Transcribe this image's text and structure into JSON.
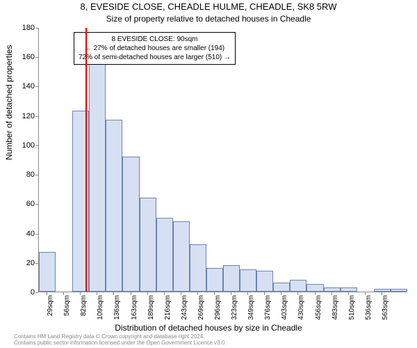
{
  "title_main": "8, EVESIDE CLOSE, CHEADLE HULME, CHEADLE, SK8 5RW",
  "title_sub": "Size of property relative to detached houses in Cheadle",
  "chart": {
    "type": "histogram",
    "y_axis_label": "Number of detached properties",
    "x_axis_label": "Distribution of detached houses by size in Cheadle",
    "ylim": [
      0,
      180
    ],
    "ytick_step": 20,
    "y_ticks": [
      0,
      20,
      40,
      60,
      80,
      100,
      120,
      140,
      160,
      180
    ],
    "x_ticks": [
      "29sqm",
      "56sqm",
      "82sqm",
      "109sqm",
      "136sqm",
      "163sqm",
      "189sqm",
      "216sqm",
      "243sqm",
      "269sqm",
      "296sqm",
      "323sqm",
      "349sqm",
      "376sqm",
      "403sqm",
      "430sqm",
      "456sqm",
      "483sqm",
      "510sqm",
      "536sqm",
      "563sqm"
    ],
    "bar_values": [
      27,
      0,
      123,
      168,
      117,
      92,
      64,
      50,
      48,
      32,
      16,
      18,
      15,
      14,
      6,
      8,
      5,
      3,
      3,
      0,
      2,
      2
    ],
    "bar_fill_color": "#d6e0f2",
    "bar_border_color": "#6e82b5",
    "reference_line_color": "#ee0000",
    "reference_line_position": 90,
    "background_color": "#ffffff",
    "annotation": {
      "line1": "8 EVESIDE CLOSE: 90sqm",
      "line2": "← 27% of detached houses are smaller (194)",
      "line3": "72% of semi-detached houses are larger (510) →"
    }
  },
  "footer_line1": "Contains HM Land Registry data © Crown copyright and database right 2024.",
  "footer_line2": "Contains public sector information licensed under the Open Government Licence v3.0."
}
